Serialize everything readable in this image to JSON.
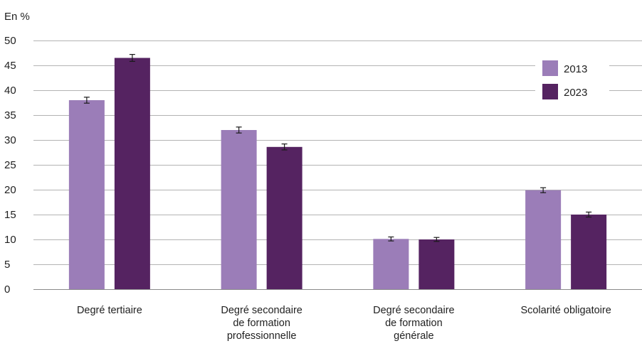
{
  "chart_data": {
    "type": "bar",
    "unit_label": "En %",
    "categories": [
      [
        "Degré tertiaire"
      ],
      [
        "Degré secondaire",
        "de formation",
        "professionnelle"
      ],
      [
        "Degré secondaire",
        "de formation",
        "générale"
      ],
      [
        "Scolarité obligatoire"
      ]
    ],
    "series": [
      {
        "name": "2013",
        "color": "#9b7db8",
        "values": [
          38.0,
          32.0,
          10.1,
          19.9
        ],
        "error": [
          0.6,
          0.6,
          0.4,
          0.5
        ]
      },
      {
        "name": "2023",
        "color": "#552361",
        "values": [
          46.5,
          28.6,
          10.0,
          15.0
        ],
        "error": [
          0.7,
          0.6,
          0.4,
          0.5
        ]
      }
    ],
    "ylim": [
      0,
      50
    ],
    "yticks": [
      0,
      5,
      10,
      15,
      20,
      25,
      30,
      35,
      40,
      45,
      50
    ],
    "grid": true,
    "legend_position": "top-right"
  }
}
